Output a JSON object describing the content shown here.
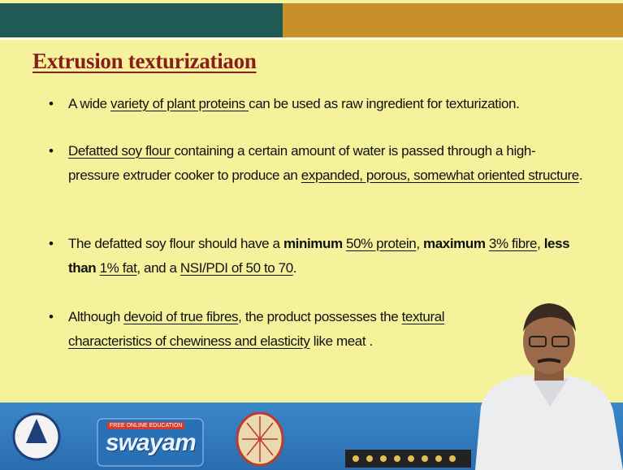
{
  "slide": {
    "title": "Extrusion texturizatiaon",
    "bullets": [
      [
        "A wide ",
        "variety of plant proteins ",
        "can be used as raw ingredient for texturization."
      ],
      [
        "Defatted soy flour ",
        "containing a certain amount of water is passed through a high-pressure extruder cooker to produce an ",
        "expanded, porous, somewhat oriented structure",
        "."
      ],
      [
        "The defatted soy flour should have a ",
        "minimum ",
        "50% protein",
        ", ",
        "maximum ",
        "3% fibre",
        ", ",
        "less than ",
        "1% fat",
        ", and a ",
        "NSI/PDI of 50 to 70",
        "."
      ],
      [
        "Although ",
        "devoid of true fibres",
        ", the product possesses the ",
        "textural characteristics of chewiness and elasticity",
        "  like meat ."
      ]
    ]
  },
  "footer": {
    "tagline": "FREE ONLINE EDUCATION",
    "brand": "swayam"
  }
}
